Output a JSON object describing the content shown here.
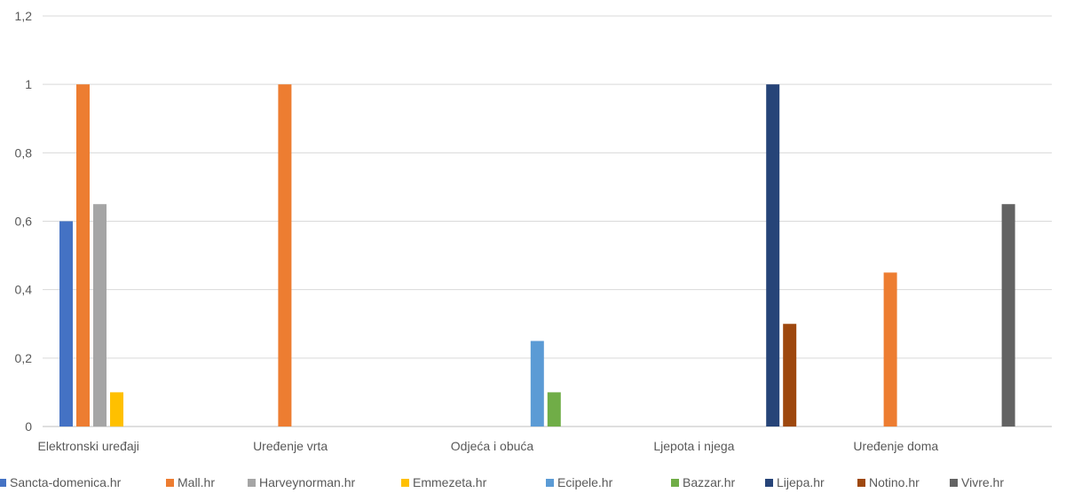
{
  "chart_data": {
    "type": "bar",
    "categories": [
      "Elektronski uređaji",
      "Uređenje vrta",
      "Odjeća i obuća",
      "Ljepota i njega",
      "Uređenje doma"
    ],
    "ylim": [
      0,
      1.2
    ],
    "yticks": [
      "0",
      "0,2",
      "0,4",
      "0,6",
      "0,8",
      "1",
      "1,2"
    ],
    "ytick_values": [
      0,
      0.2,
      0.4,
      0.6,
      0.8,
      1.0,
      1.2
    ],
    "grid": true,
    "legend_position": "bottom",
    "series": [
      {
        "name": "Sancta-domenica.hr",
        "color": "#4472C4",
        "values": [
          0.6,
          null,
          null,
          null,
          null
        ]
      },
      {
        "name": "Mall.hr",
        "color": "#ED7D31",
        "values": [
          1.0,
          1.0,
          null,
          null,
          0.45
        ]
      },
      {
        "name": "Harveynorman.hr",
        "color": "#A5A5A5",
        "values": [
          0.65,
          null,
          null,
          null,
          null
        ]
      },
      {
        "name": "Emmezeta.hr",
        "color": "#FFC000",
        "values": [
          0.1,
          null,
          null,
          null,
          null
        ]
      },
      {
        "name": "Ecipele.hr",
        "color": "#5B9BD5",
        "values": [
          null,
          null,
          0.25,
          null,
          null
        ]
      },
      {
        "name": "Bazzar.hr",
        "color": "#70AD47",
        "values": [
          null,
          null,
          0.1,
          null,
          null
        ]
      },
      {
        "name": "Lijepa.hr",
        "color": "#264478",
        "values": [
          null,
          null,
          null,
          1.0,
          null
        ]
      },
      {
        "name": "Notino.hr",
        "color": "#9E480E",
        "values": [
          null,
          null,
          null,
          0.3,
          null
        ]
      },
      {
        "name": "Vivre.hr",
        "color": "#636363",
        "values": [
          null,
          null,
          null,
          null,
          0.65
        ]
      }
    ]
  }
}
